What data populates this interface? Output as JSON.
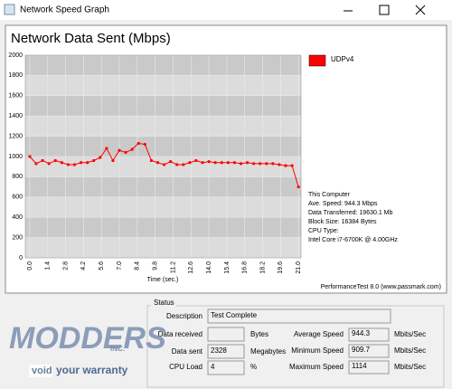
{
  "window": {
    "title": "Network Speed Graph"
  },
  "chart_data": {
    "type": "line",
    "title": "Network Data Sent (Mbps)",
    "x_label": "Time (sec.)",
    "x": [
      0,
      0.5,
      1,
      1.5,
      2,
      2.5,
      3,
      3.5,
      4,
      4.5,
      5,
      5.5,
      6,
      6.5,
      7,
      7.5,
      8,
      8.5,
      9,
      9.5,
      10,
      10.5,
      11,
      11.5,
      12,
      12.5,
      13,
      13.5,
      14,
      14.5,
      15,
      15.5,
      16,
      16.5,
      17,
      17.5,
      18,
      18.5,
      19,
      19.5,
      20,
      20.5,
      21
    ],
    "series": [
      {
        "name": "UDPv4",
        "color": "#ff0000",
        "values": [
          1000,
          930,
          960,
          930,
          960,
          940,
          920,
          920,
          940,
          940,
          960,
          990,
          1080,
          960,
          1060,
          1040,
          1070,
          1130,
          1120,
          960,
          940,
          920,
          950,
          920,
          920,
          940,
          960,
          940,
          950,
          940,
          940,
          940,
          940,
          930,
          940,
          930,
          930,
          930,
          930,
          920,
          910,
          910,
          700
        ]
      }
    ],
    "xlim": [
      -0.35,
      21.2
    ],
    "ylim": [
      0,
      2000
    ],
    "xticks": [
      {
        "value": 0,
        "label": "0.0"
      },
      1.4,
      2.8,
      4.2,
      5.6,
      {
        "value": 7,
        "label": "7.0"
      },
      8.4,
      9.8,
      11.2,
      12.6,
      {
        "value": 14,
        "label": "14.0"
      },
      15.4,
      16.8,
      18.2,
      19.6,
      {
        "value": 21,
        "label": "21.0"
      }
    ],
    "yticks": [
      0,
      200,
      400,
      600,
      800,
      1000,
      1200,
      1400,
      1600,
      1800,
      2000
    ],
    "grid": true,
    "band_colors": [
      "#dcdcdc",
      "#c9c9c9"
    ],
    "legend": "upper right",
    "info": [
      "This Computer",
      "Ave. Speed: 944.3 Mbps",
      "Data Transferred: 19630.1 Mb",
      "Block Size: 16384 Bytes",
      "CPU Type:",
      "Intel Core i7-6700K @ 4.00GHz"
    ],
    "footer": "PerformanceTest 8.0 (www.passmark.com)"
  },
  "status": {
    "title": "Status",
    "description_label": "Description",
    "description": "Test Complete",
    "data_received_label": "Data received",
    "data_received_unit": "Bytes",
    "data_sent_label": "Data sent",
    "data_sent": 2328,
    "data_sent_unit": "Megabytes",
    "cpu_load_label": "CPU Load",
    "cpu_load": 4,
    "cpu_load_unit": "%",
    "average_speed_label": "Average Speed",
    "average_speed": 944.3,
    "minimum_speed_label": "Minimum Speed",
    "minimum_speed": 909.7,
    "maximum_speed_label": "Maximum Speed",
    "maximum_speed": 1114,
    "speed_unit": "Mbits/Sec"
  },
  "watermark": {
    "name": "MODDERS",
    "suffix": "INC.",
    "slogan_box": "void",
    "slogan": "your warranty"
  }
}
